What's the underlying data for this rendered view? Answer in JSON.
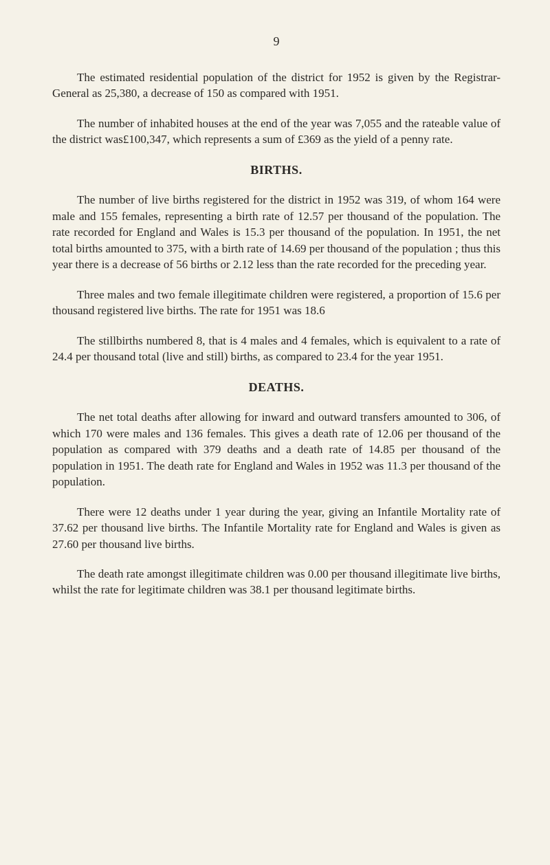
{
  "page_number": "9",
  "paragraphs": {
    "p1": "The estimated residential population of the district for 1952 is given by the Registrar-General as 25,380, a decrease of 150 as compared with 1951.",
    "p2": "The number of inhabited houses at the end of the year was 7,055 and the rateable value of the district was£100,347, which represents a sum of £369 as the yield of a penny rate.",
    "p3": "The number of live births registered for the district in 1952 was 319, of whom 164 were male and 155 females, representing a birth rate of 12.57 per thousand of the population. The rate recorded for England and Wales is 15.3 per thousand of the population. In 1951, the net total births amounted to 375, with a birth rate of 14.69 per thousand of the population ; thus this year there is a decrease of 56 births or 2.12 less than the rate recorded for the preceding year.",
    "p4": "Three males and two female illegitimate children were registered, a proportion of 15.6 per thousand registered live births. The rate for 1951 was 18.6",
    "p5": "The stillbirths numbered 8, that is 4 males and 4 females, which is equivalent to a rate of 24.4 per thousand total (live and still) births, as compared to 23.4 for the year 1951.",
    "p6": "The net total deaths after allowing for inward and outward transfers amounted to 306, of which 170 were males and 136 females. This gives a death rate of 12.06 per thousand of the population as compared with 379 deaths and a death rate of 14.85 per thousand of the population in 1951. The death rate for England and Wales in 1952 was 11.3 per thousand of the population.",
    "p7": "There were 12 deaths under 1 year during the year, giving an Infantile Mortality rate of 37.62 per thousand live births. The Infantile Mortality rate for England and Wales is given as 27.60 per thousand live births.",
    "p8": "The death rate amongst illegitimate children was 0.00 per thousand illegitimate live births, whilst the rate for legitimate children was 38.1 per thousand legitimate births."
  },
  "headings": {
    "births": "BIRTHS.",
    "deaths": "DEATHS."
  },
  "colors": {
    "background": "#f5f2e8",
    "text": "#2a2825"
  },
  "typography": {
    "body_fontsize": 17,
    "heading_fontsize": 18,
    "font_family": "Georgia, Times New Roman, serif",
    "line_height": 1.38,
    "text_indent": 36
  }
}
